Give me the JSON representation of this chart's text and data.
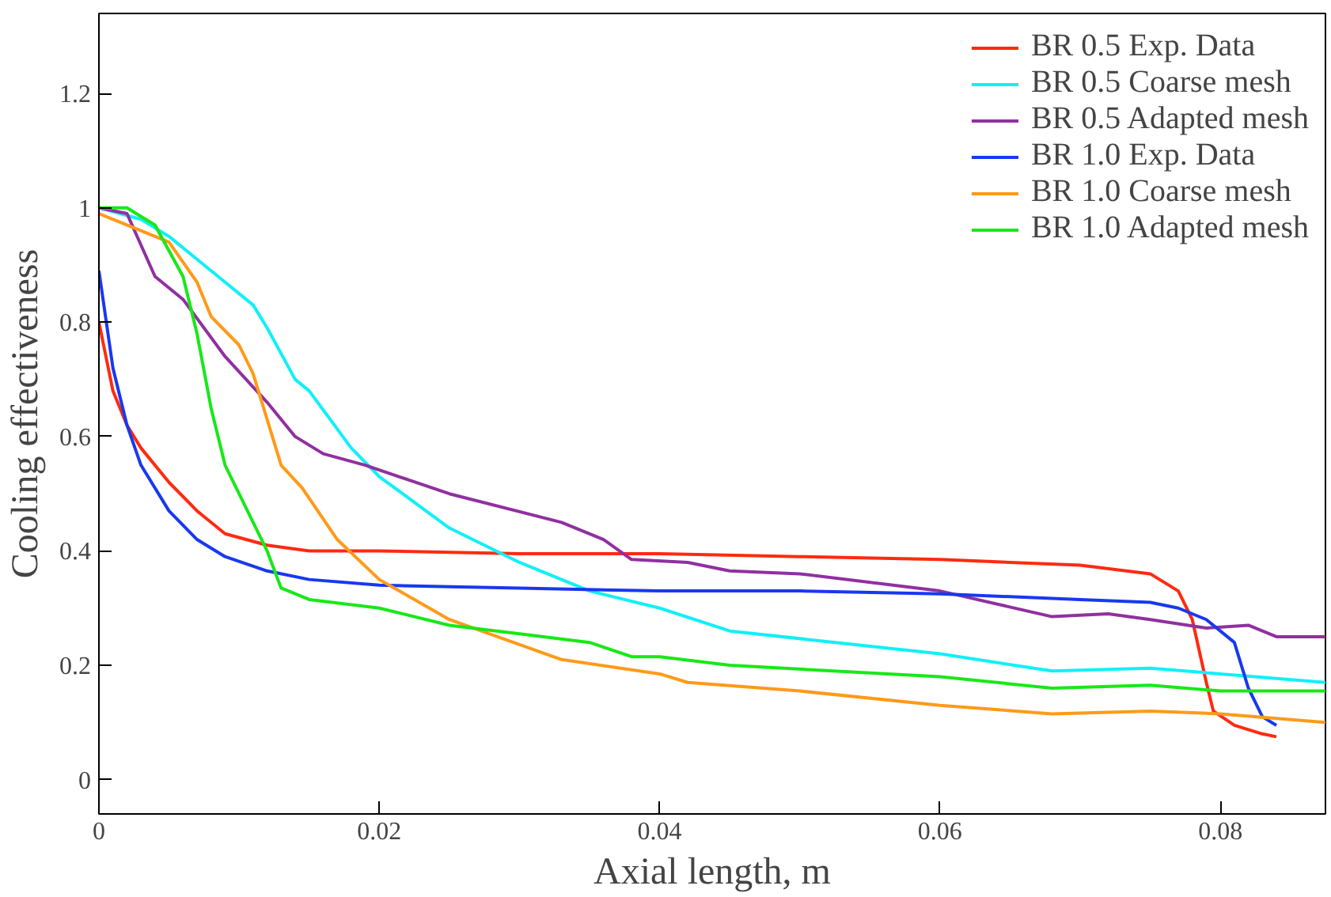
{
  "chart_data": {
    "type": "line",
    "xlabel": "Axial length, m",
    "ylabel": "Cooling effectiveness",
    "xlim": [
      0,
      0.0875
    ],
    "ylim": [
      -0.06,
      1.34
    ],
    "xticks": [
      0,
      0.02,
      0.04,
      0.06,
      0.08
    ],
    "yticks": [
      0,
      0.2,
      0.4,
      0.6,
      0.8,
      1,
      1.2
    ],
    "grid": false,
    "legend": "top right",
    "marker": "none",
    "line_style": "solid",
    "series": [
      {
        "name": "BR 0.5 Exp. Data",
        "color": "#ff2a10",
        "x": [
          0,
          0.001,
          0.002,
          0.003,
          0.005,
          0.007,
          0.009,
          0.012,
          0.015,
          0.02,
          0.03,
          0.04,
          0.05,
          0.06,
          0.07,
          0.075,
          0.077,
          0.078,
          0.079,
          0.0795,
          0.081,
          0.083,
          0.084
        ],
        "values": [
          0.8,
          0.68,
          0.62,
          0.58,
          0.52,
          0.47,
          0.43,
          0.41,
          0.4,
          0.4,
          0.395,
          0.395,
          0.39,
          0.385,
          0.375,
          0.36,
          0.33,
          0.28,
          0.17,
          0.12,
          0.095,
          0.08,
          0.075
        ]
      },
      {
        "name": "BR 0.5 Coarse mesh",
        "color": "#10f0f8",
        "x": [
          0,
          0.003,
          0.005,
          0.008,
          0.011,
          0.012,
          0.014,
          0.015,
          0.018,
          0.02,
          0.025,
          0.03,
          0.035,
          0.04,
          0.045,
          0.06,
          0.068,
          0.075,
          0.08,
          0.0875
        ],
        "values": [
          1.0,
          0.98,
          0.95,
          0.89,
          0.83,
          0.79,
          0.7,
          0.68,
          0.58,
          0.53,
          0.44,
          0.38,
          0.33,
          0.3,
          0.26,
          0.22,
          0.19,
          0.195,
          0.185,
          0.17
        ]
      },
      {
        "name": "BR 0.5 Adapted mesh",
        "color": "#9030a0",
        "x": [
          0,
          0.002,
          0.004,
          0.006,
          0.009,
          0.012,
          0.014,
          0.016,
          0.019,
          0.025,
          0.033,
          0.036,
          0.038,
          0.042,
          0.045,
          0.05,
          0.06,
          0.068,
          0.072,
          0.075,
          0.079,
          0.082,
          0.084,
          0.0875
        ],
        "values": [
          1.0,
          0.99,
          0.88,
          0.84,
          0.74,
          0.66,
          0.6,
          0.57,
          0.55,
          0.5,
          0.45,
          0.42,
          0.385,
          0.38,
          0.365,
          0.36,
          0.33,
          0.285,
          0.29,
          0.28,
          0.265,
          0.27,
          0.25,
          0.25
        ]
      },
      {
        "name": "BR 1.0 Exp. Data",
        "color": "#1838f0",
        "x": [
          0,
          0.001,
          0.002,
          0.003,
          0.005,
          0.007,
          0.009,
          0.012,
          0.015,
          0.02,
          0.03,
          0.04,
          0.05,
          0.06,
          0.07,
          0.075,
          0.077,
          0.079,
          0.081,
          0.082,
          0.083,
          0.084
        ],
        "values": [
          0.89,
          0.72,
          0.62,
          0.55,
          0.47,
          0.42,
          0.39,
          0.365,
          0.35,
          0.34,
          0.335,
          0.33,
          0.33,
          0.325,
          0.315,
          0.31,
          0.3,
          0.28,
          0.24,
          0.16,
          0.11,
          0.095
        ]
      },
      {
        "name": "BR 1.0 Coarse mesh",
        "color": "#ff9a18",
        "x": [
          0,
          0.003,
          0.005,
          0.007,
          0.008,
          0.01,
          0.011,
          0.013,
          0.0145,
          0.017,
          0.02,
          0.025,
          0.033,
          0.04,
          0.042,
          0.05,
          0.06,
          0.068,
          0.075,
          0.08,
          0.0875
        ],
        "values": [
          0.99,
          0.96,
          0.94,
          0.87,
          0.81,
          0.76,
          0.71,
          0.55,
          0.51,
          0.42,
          0.35,
          0.28,
          0.21,
          0.185,
          0.17,
          0.155,
          0.13,
          0.115,
          0.12,
          0.115,
          0.1
        ]
      },
      {
        "name": "BR 1.0 Adapted mesh",
        "color": "#18e818",
        "x": [
          0,
          0.002,
          0.004,
          0.006,
          0.007,
          0.008,
          0.009,
          0.01,
          0.011,
          0.012,
          0.013,
          0.015,
          0.02,
          0.025,
          0.03,
          0.035,
          0.038,
          0.04,
          0.045,
          0.06,
          0.068,
          0.075,
          0.08,
          0.0875
        ],
        "values": [
          1.0,
          1.0,
          0.97,
          0.88,
          0.78,
          0.65,
          0.55,
          0.5,
          0.45,
          0.4,
          0.335,
          0.315,
          0.3,
          0.27,
          0.255,
          0.24,
          0.215,
          0.215,
          0.2,
          0.18,
          0.16,
          0.165,
          0.155,
          0.155
        ]
      }
    ]
  }
}
